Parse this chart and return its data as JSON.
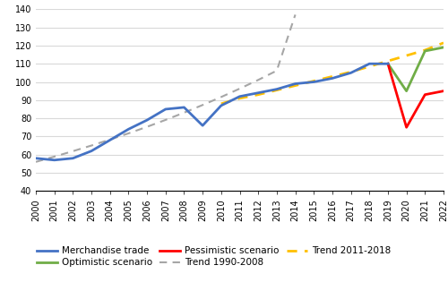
{
  "merchandise_trade": {
    "years": [
      2000,
      2001,
      2002,
      2003,
      2004,
      2005,
      2006,
      2007,
      2008,
      2009,
      2010,
      2011,
      2012,
      2013,
      2014,
      2015,
      2016,
      2017,
      2018,
      2019
    ],
    "values": [
      58,
      57,
      58,
      62,
      68,
      74,
      79,
      85,
      86,
      76,
      87,
      92,
      94,
      96,
      99,
      100,
      102,
      105,
      110,
      110
    ]
  },
  "optimistic": {
    "years": [
      2019,
      2020,
      2021,
      2022
    ],
    "values": [
      110,
      95,
      117,
      119
    ]
  },
  "pessimistic": {
    "years": [
      2019,
      2020,
      2021,
      2022
    ],
    "values": [
      110,
      75,
      93,
      95
    ]
  },
  "trend_1990_2008": {
    "years": [
      2000,
      2001,
      2002,
      2003,
      2004,
      2005,
      2006,
      2007,
      2008,
      2009,
      2010,
      2011,
      2012,
      2013,
      2014
    ],
    "values": [
      56.0,
      58.9,
      61.9,
      65.0,
      68.3,
      71.7,
      75.3,
      79.1,
      83.1,
      87.3,
      91.7,
      96.3,
      101.1,
      106.2,
      137.0
    ]
  },
  "trend_2011_2018": {
    "years": [
      2010,
      2011,
      2012,
      2013,
      2014,
      2015,
      2016,
      2017,
      2018,
      2019,
      2020,
      2021,
      2022
    ],
    "values": [
      88.0,
      91.0,
      93.0,
      95.5,
      98.0,
      100.5,
      103.0,
      105.5,
      108.5,
      111.5,
      114.5,
      117.5,
      121.5
    ]
  },
  "ylim": [
    40,
    140
  ],
  "yticks": [
    40,
    50,
    60,
    70,
    80,
    90,
    100,
    110,
    120,
    130,
    140
  ],
  "xlim": [
    2000,
    2022
  ],
  "xticks": [
    2000,
    2001,
    2002,
    2003,
    2004,
    2005,
    2006,
    2007,
    2008,
    2009,
    2010,
    2011,
    2012,
    2013,
    2014,
    2015,
    2016,
    2017,
    2018,
    2019,
    2020,
    2021,
    2022
  ],
  "colors": {
    "merchandise_trade": "#4472C4",
    "optimistic": "#70AD47",
    "pessimistic": "#FF0000",
    "trend_1990_2008": "#A6A6A6",
    "trend_2011_2018": "#FFC000"
  },
  "linewidths": {
    "merchandise_trade": 2.0,
    "optimistic": 2.0,
    "pessimistic": 2.0,
    "trend_1990_2008": 1.5,
    "trend_2011_2018": 2.0
  },
  "legend_row1": [
    "merchandise_trade",
    "optimistic",
    "pessimistic"
  ],
  "legend_row2": [
    "trend_1990_2008",
    "trend_2011_2018"
  ],
  "legend_labels": {
    "merchandise_trade": "Merchandise trade",
    "optimistic": "Optimistic scenario",
    "pessimistic": "Pessimistic scenario",
    "trend_1990_2008": "Trend 1990-2008",
    "trend_2011_2018": "Trend 2011-2018"
  },
  "background_color": "#FFFFFF",
  "grid_color": "#D9D9D9",
  "tick_fontsize": 7,
  "legend_fontsize": 7.5
}
